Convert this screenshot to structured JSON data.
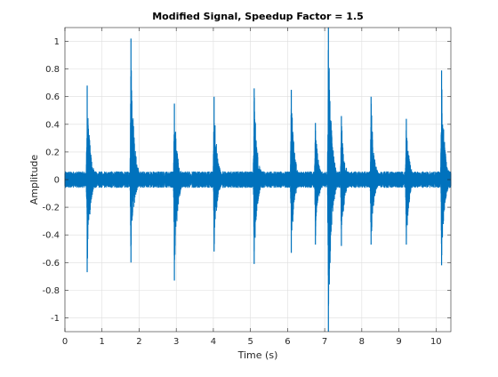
{
  "chart_data": {
    "type": "line",
    "title": "Modified Signal, Speedup Factor = 1.5",
    "xlabel": "Time (s)",
    "ylabel": "Amplitude",
    "xlim": [
      0,
      10.4
    ],
    "ylim": [
      -1.1,
      1.1
    ],
    "xticks": [
      0,
      1,
      2,
      3,
      4,
      5,
      6,
      7,
      8,
      9,
      10
    ],
    "xtick_labels": [
      "0",
      "1",
      "2",
      "3",
      "4",
      "5",
      "6",
      "7",
      "8",
      "9",
      "10"
    ],
    "yticks": [
      -1,
      -0.8,
      -0.6,
      -0.4,
      -0.2,
      0,
      0.2,
      0.4,
      0.6,
      0.8,
      1
    ],
    "ytick_labels": [
      "-1",
      "-0.8",
      "-0.6",
      "-0.4",
      "-0.2",
      "0",
      "0.2",
      "0.4",
      "0.6",
      "0.8",
      "1"
    ],
    "grid": true,
    "box": true,
    "line_color": "#0072BD",
    "noise_floor": 0.04,
    "bursts": [
      {
        "time": 0.6,
        "peak_max": 0.68,
        "peak_min": -0.67
      },
      {
        "time": 1.78,
        "peak_max": 1.02,
        "peak_min": -0.6
      },
      {
        "time": 2.95,
        "peak_max": 0.55,
        "peak_min": -0.73
      },
      {
        "time": 4.02,
        "peak_max": 0.6,
        "peak_min": -0.52
      },
      {
        "time": 5.1,
        "peak_max": 0.66,
        "peak_min": -0.61
      },
      {
        "time": 6.1,
        "peak_max": 0.65,
        "peak_min": -0.53
      },
      {
        "time": 6.75,
        "peak_max": 0.41,
        "peak_min": -0.47
      },
      {
        "time": 7.1,
        "peak_max": 1.1,
        "peak_min": -1.1
      },
      {
        "time": 7.45,
        "peak_max": 0.46,
        "peak_min": -0.48
      },
      {
        "time": 8.25,
        "peak_max": 0.6,
        "peak_min": -0.47
      },
      {
        "time": 9.2,
        "peak_max": 0.44,
        "peak_min": -0.47
      },
      {
        "time": 10.15,
        "peak_max": 0.79,
        "peak_min": -0.62
      }
    ]
  }
}
